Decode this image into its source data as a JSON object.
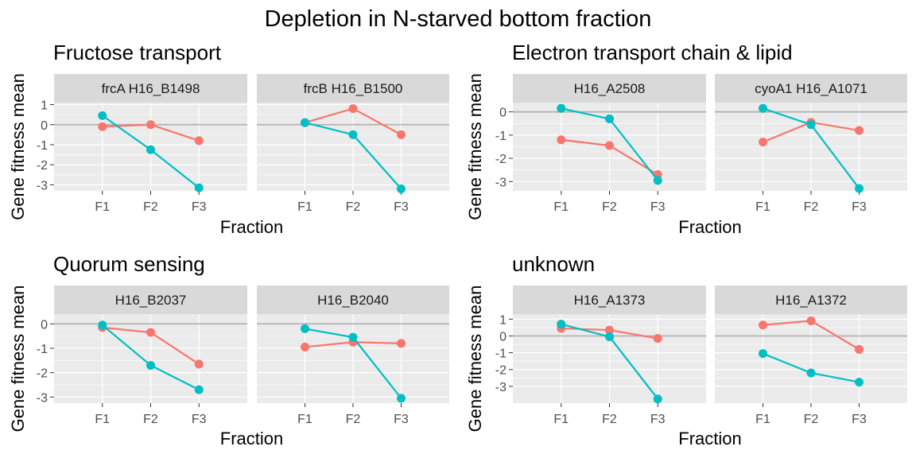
{
  "title": "Depletion in N-starved bottom fraction",
  "colors": {
    "series_a": "#F8766D",
    "series_b": "#00BFC4",
    "strip": "#D9D9D9",
    "panel": "#EBEBEB",
    "zero_line": "#B3B3B3"
  },
  "chart_data": [
    {
      "type": "line",
      "title": "Fructose transport",
      "xlabel": "Fraction",
      "ylabel": "Gene fitness mean",
      "ylim": [
        -3.3,
        1.1
      ],
      "yticks": [
        1,
        0,
        -1,
        -2,
        -3
      ],
      "categories": [
        "F1",
        "F2",
        "F3"
      ],
      "facets": [
        {
          "strip": "frcA H16_B1498",
          "series": [
            {
              "values": [
                -0.1,
                0.0,
                -0.8
              ]
            },
            {
              "values": [
                0.45,
                -1.25,
                -3.15
              ]
            }
          ]
        },
        {
          "strip": "frcB H16_B1500",
          "series": [
            {
              "values": [
                0.1,
                0.8,
                -0.5
              ]
            },
            {
              "values": [
                0.1,
                -0.5,
                -3.2
              ]
            }
          ]
        }
      ]
    },
    {
      "type": "line",
      "title": "Electron transport chain & lipid",
      "xlabel": "Fraction",
      "ylabel": "Gene fitness mean",
      "ylim": [
        -3.4,
        0.4
      ],
      "yticks": [
        0,
        -1,
        -2,
        -3
      ],
      "categories": [
        "F1",
        "F2",
        "F3"
      ],
      "facets": [
        {
          "strip": "H16_A2508",
          "series": [
            {
              "values": [
                -1.2,
                -1.45,
                -2.7
              ]
            },
            {
              "values": [
                0.15,
                -0.3,
                -2.95
              ]
            }
          ]
        },
        {
          "strip": "cyoA1 H16_A1071",
          "series": [
            {
              "values": [
                -1.3,
                -0.45,
                -0.8
              ]
            },
            {
              "values": [
                0.15,
                -0.55,
                -3.3
              ]
            }
          ]
        }
      ]
    },
    {
      "type": "line",
      "title": "Quorum sensing",
      "xlabel": "Fraction",
      "ylabel": "Gene fitness mean",
      "ylim": [
        -3.25,
        0.4
      ],
      "yticks": [
        0,
        -1,
        -2,
        -3
      ],
      "categories": [
        "F1",
        "F2",
        "F3"
      ],
      "facets": [
        {
          "strip": "H16_B2037",
          "series": [
            {
              "values": [
                -0.15,
                -0.35,
                -1.65
              ]
            },
            {
              "values": [
                -0.05,
                -1.7,
                -2.7
              ]
            }
          ]
        },
        {
          "strip": "H16_B2040",
          "series": [
            {
              "values": [
                -0.95,
                -0.75,
                -0.8
              ]
            },
            {
              "values": [
                -0.2,
                -0.55,
                -3.05
              ]
            }
          ]
        }
      ]
    },
    {
      "type": "line",
      "title": "unknown",
      "xlabel": "Fraction",
      "ylabel": "Gene fitness mean",
      "ylim": [
        -4.0,
        1.3
      ],
      "yticks": [
        1,
        0,
        -1,
        -2,
        -3
      ],
      "categories": [
        "F1",
        "F2",
        "F3"
      ],
      "facets": [
        {
          "strip": "H16_A1373",
          "series": [
            {
              "values": [
                0.45,
                0.35,
                -0.15
              ]
            },
            {
              "values": [
                0.7,
                -0.05,
                -3.75
              ]
            }
          ]
        },
        {
          "strip": "H16_A1372",
          "series": [
            {
              "values": [
                0.65,
                0.9,
                -0.8
              ]
            },
            {
              "values": [
                -1.05,
                -2.2,
                -2.75
              ]
            }
          ]
        }
      ]
    }
  ]
}
